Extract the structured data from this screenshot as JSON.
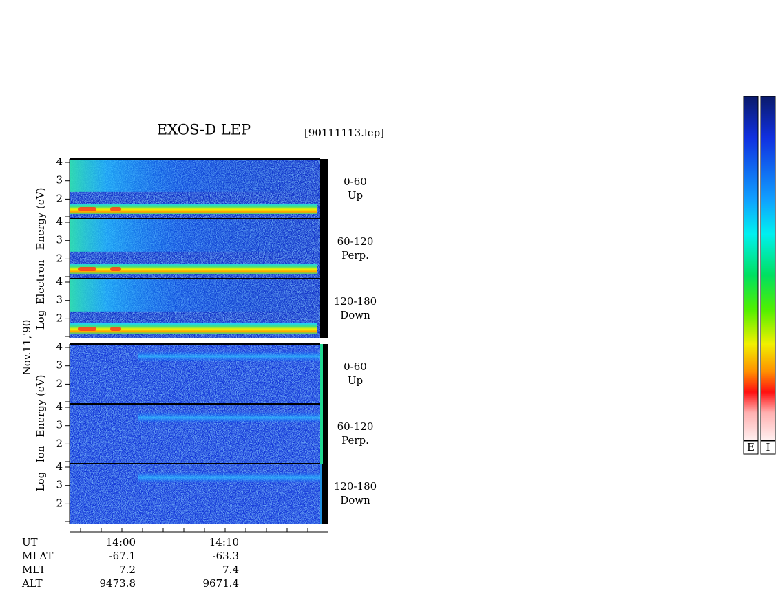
{
  "header": {
    "title": "EXOS-D LEP",
    "file": "[90111113.lep]"
  },
  "date": "Nov.11,'90",
  "groups": [
    {
      "axis_label": [
        "Log",
        "Electron",
        "Energy (eV)"
      ],
      "panels": [
        {
          "range": "0-60",
          "direction": "Up"
        },
        {
          "range": "60-120",
          "direction": "Perp."
        },
        {
          "range": "120-180",
          "direction": "Down"
        }
      ]
    },
    {
      "axis_label": [
        "Log",
        "Ion",
        "Energy (eV)"
      ],
      "panels": [
        {
          "range": "0-60",
          "direction": "Up"
        },
        {
          "range": "60-120",
          "direction": "Perp."
        },
        {
          "range": "120-180",
          "direction": "Down"
        }
      ]
    }
  ],
  "yticks": [
    2,
    3,
    4
  ],
  "footer": {
    "rows": [
      {
        "label": "UT",
        "values": [
          "14:00",
          "14:10"
        ]
      },
      {
        "label": "MLAT",
        "values": [
          "-67.1",
          "-63.3"
        ]
      },
      {
        "label": "MLT",
        "values": [
          "7.2",
          "7.4"
        ]
      },
      {
        "label": "ALT",
        "values": [
          "9473.8",
          "9671.4"
        ]
      }
    ]
  },
  "colorbars": [
    "E",
    "I"
  ]
}
